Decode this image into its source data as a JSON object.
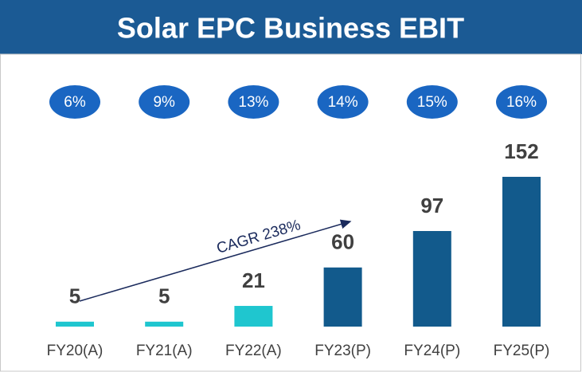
{
  "chart_data": {
    "type": "bar",
    "title": "Solar EPC Business EBIT",
    "categories": [
      "FY20(A)",
      "FY21(A)",
      "FY22(A)",
      "FY23(P)",
      "FY24(P)",
      "FY25(P)"
    ],
    "values": [
      5,
      5,
      21,
      60,
      97,
      152
    ],
    "colors": [
      "#1fc6cf",
      "#1fc6cf",
      "#1fc6cf",
      "#125a8c",
      "#125a8c",
      "#125a8c"
    ],
    "margins": {
      "values": [
        6,
        9,
        13,
        14,
        15,
        16
      ],
      "value_labels": [
        "6%",
        "9%",
        "13%",
        "14%",
        "15%",
        "16%"
      ],
      "color": "#1a66c2"
    },
    "annotation": "CAGR 238%"
  }
}
